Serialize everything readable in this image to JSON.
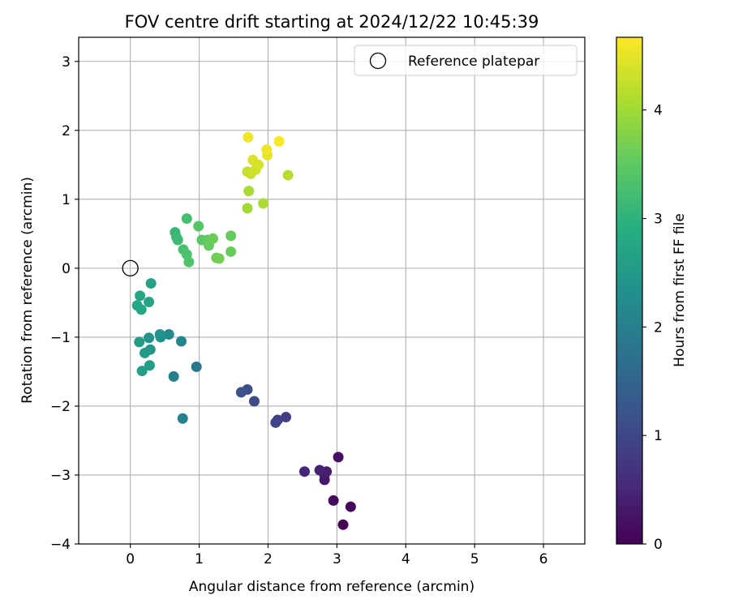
{
  "chart_data": {
    "type": "scatter",
    "title": "FOV centre drift starting at 2024/12/22 10:45:39",
    "xlabel": "Angular distance from reference (arcmin)",
    "ylabel": "Rotation from reference (arcmin)",
    "xlim": [
      -0.75,
      6.6
    ],
    "ylim": [
      -4.0,
      3.35
    ],
    "xticks": [
      0,
      1,
      2,
      3,
      4,
      5,
      6
    ],
    "yticks": [
      -4,
      -3,
      -2,
      -1,
      0,
      1,
      2,
      3
    ],
    "grid": true,
    "legend": {
      "placement": "top-right",
      "entries": [
        "Reference platepar"
      ]
    },
    "reference_point": {
      "x": 0,
      "y": 0,
      "label": "Reference platepar"
    },
    "colorbar": {
      "label": "Hours from first FF file",
      "colormap": "viridis",
      "range": [
        0,
        4.67
      ],
      "ticks": [
        0,
        1,
        2,
        3,
        4
      ]
    },
    "points": [
      {
        "x": 3.09,
        "y": -3.72,
        "c": 0.05
      },
      {
        "x": 3.2,
        "y": -3.46,
        "c": 0.08
      },
      {
        "x": 2.95,
        "y": -3.37,
        "c": 0.15
      },
      {
        "x": 3.02,
        "y": -2.74,
        "c": 0.2
      },
      {
        "x": 2.82,
        "y": -3.07,
        "c": 0.3
      },
      {
        "x": 2.82,
        "y": -3.0,
        "c": 0.33
      },
      {
        "x": 2.85,
        "y": -2.95,
        "c": 0.38
      },
      {
        "x": 2.75,
        "y": -2.93,
        "c": 0.42
      },
      {
        "x": 2.53,
        "y": -2.95,
        "c": 0.48
      },
      {
        "x": 2.26,
        "y": -2.16,
        "c": 0.85
      },
      {
        "x": 2.14,
        "y": -2.2,
        "c": 0.92
      },
      {
        "x": 2.11,
        "y": -2.24,
        "c": 0.97
      },
      {
        "x": 1.8,
        "y": -1.93,
        "c": 1.05
      },
      {
        "x": 1.7,
        "y": -1.76,
        "c": 1.12
      },
      {
        "x": 1.61,
        "y": -1.8,
        "c": 1.18
      },
      {
        "x": 0.96,
        "y": -1.43,
        "c": 1.85
      },
      {
        "x": 0.76,
        "y": -2.18,
        "c": 2.05
      },
      {
        "x": 0.63,
        "y": -1.57,
        "c": 2.0
      },
      {
        "x": 0.74,
        "y": -1.06,
        "c": 2.1
      },
      {
        "x": 0.56,
        "y": -0.96,
        "c": 2.2
      },
      {
        "x": 0.44,
        "y": -1.0,
        "c": 2.3
      },
      {
        "x": 0.43,
        "y": -0.96,
        "c": 2.35
      },
      {
        "x": 0.27,
        "y": -1.01,
        "c": 2.4
      },
      {
        "x": 0.29,
        "y": -1.18,
        "c": 2.45
      },
      {
        "x": 0.21,
        "y": -1.23,
        "c": 2.5
      },
      {
        "x": 0.13,
        "y": -1.07,
        "c": 2.55
      },
      {
        "x": 0.17,
        "y": -1.49,
        "c": 2.6
      },
      {
        "x": 0.28,
        "y": -1.41,
        "c": 2.58
      },
      {
        "x": 0.3,
        "y": -0.22,
        "c": 2.65
      },
      {
        "x": 0.27,
        "y": -0.49,
        "c": 2.7
      },
      {
        "x": 0.14,
        "y": -0.4,
        "c": 2.72
      },
      {
        "x": 0.1,
        "y": -0.54,
        "c": 2.75
      },
      {
        "x": 0.16,
        "y": -0.6,
        "c": 2.78
      },
      {
        "x": 0.65,
        "y": 0.52,
        "c": 3.1
      },
      {
        "x": 0.67,
        "y": 0.45,
        "c": 3.15
      },
      {
        "x": 0.69,
        "y": 0.41,
        "c": 3.18
      },
      {
        "x": 0.82,
        "y": 0.72,
        "c": 3.25
      },
      {
        "x": 0.77,
        "y": 0.27,
        "c": 3.3
      },
      {
        "x": 0.82,
        "y": 0.2,
        "c": 3.32
      },
      {
        "x": 0.85,
        "y": 0.09,
        "c": 3.35
      },
      {
        "x": 0.99,
        "y": 0.61,
        "c": 3.4
      },
      {
        "x": 1.04,
        "y": 0.41,
        "c": 3.45
      },
      {
        "x": 1.12,
        "y": 0.41,
        "c": 3.5
      },
      {
        "x": 1.14,
        "y": 0.33,
        "c": 3.55
      },
      {
        "x": 1.2,
        "y": 0.43,
        "c": 3.6
      },
      {
        "x": 1.25,
        "y": 0.15,
        "c": 3.62
      },
      {
        "x": 1.29,
        "y": 0.14,
        "c": 3.65
      },
      {
        "x": 1.46,
        "y": 0.47,
        "c": 3.55
      },
      {
        "x": 1.46,
        "y": 0.24,
        "c": 3.58
      },
      {
        "x": 1.7,
        "y": 0.87,
        "c": 4.0
      },
      {
        "x": 1.72,
        "y": 1.12,
        "c": 4.05
      },
      {
        "x": 1.93,
        "y": 0.94,
        "c": 4.08
      },
      {
        "x": 2.29,
        "y": 1.35,
        "c": 4.15
      },
      {
        "x": 1.7,
        "y": 1.4,
        "c": 4.25
      },
      {
        "x": 1.75,
        "y": 1.37,
        "c": 4.3
      },
      {
        "x": 1.82,
        "y": 1.43,
        "c": 4.33
      },
      {
        "x": 1.86,
        "y": 1.5,
        "c": 4.38
      },
      {
        "x": 1.78,
        "y": 1.57,
        "c": 4.42
      },
      {
        "x": 1.99,
        "y": 1.64,
        "c": 4.5
      },
      {
        "x": 1.98,
        "y": 1.72,
        "c": 4.55
      },
      {
        "x": 1.71,
        "y": 1.9,
        "c": 4.58
      },
      {
        "x": 2.16,
        "y": 1.84,
        "c": 4.65
      }
    ]
  }
}
